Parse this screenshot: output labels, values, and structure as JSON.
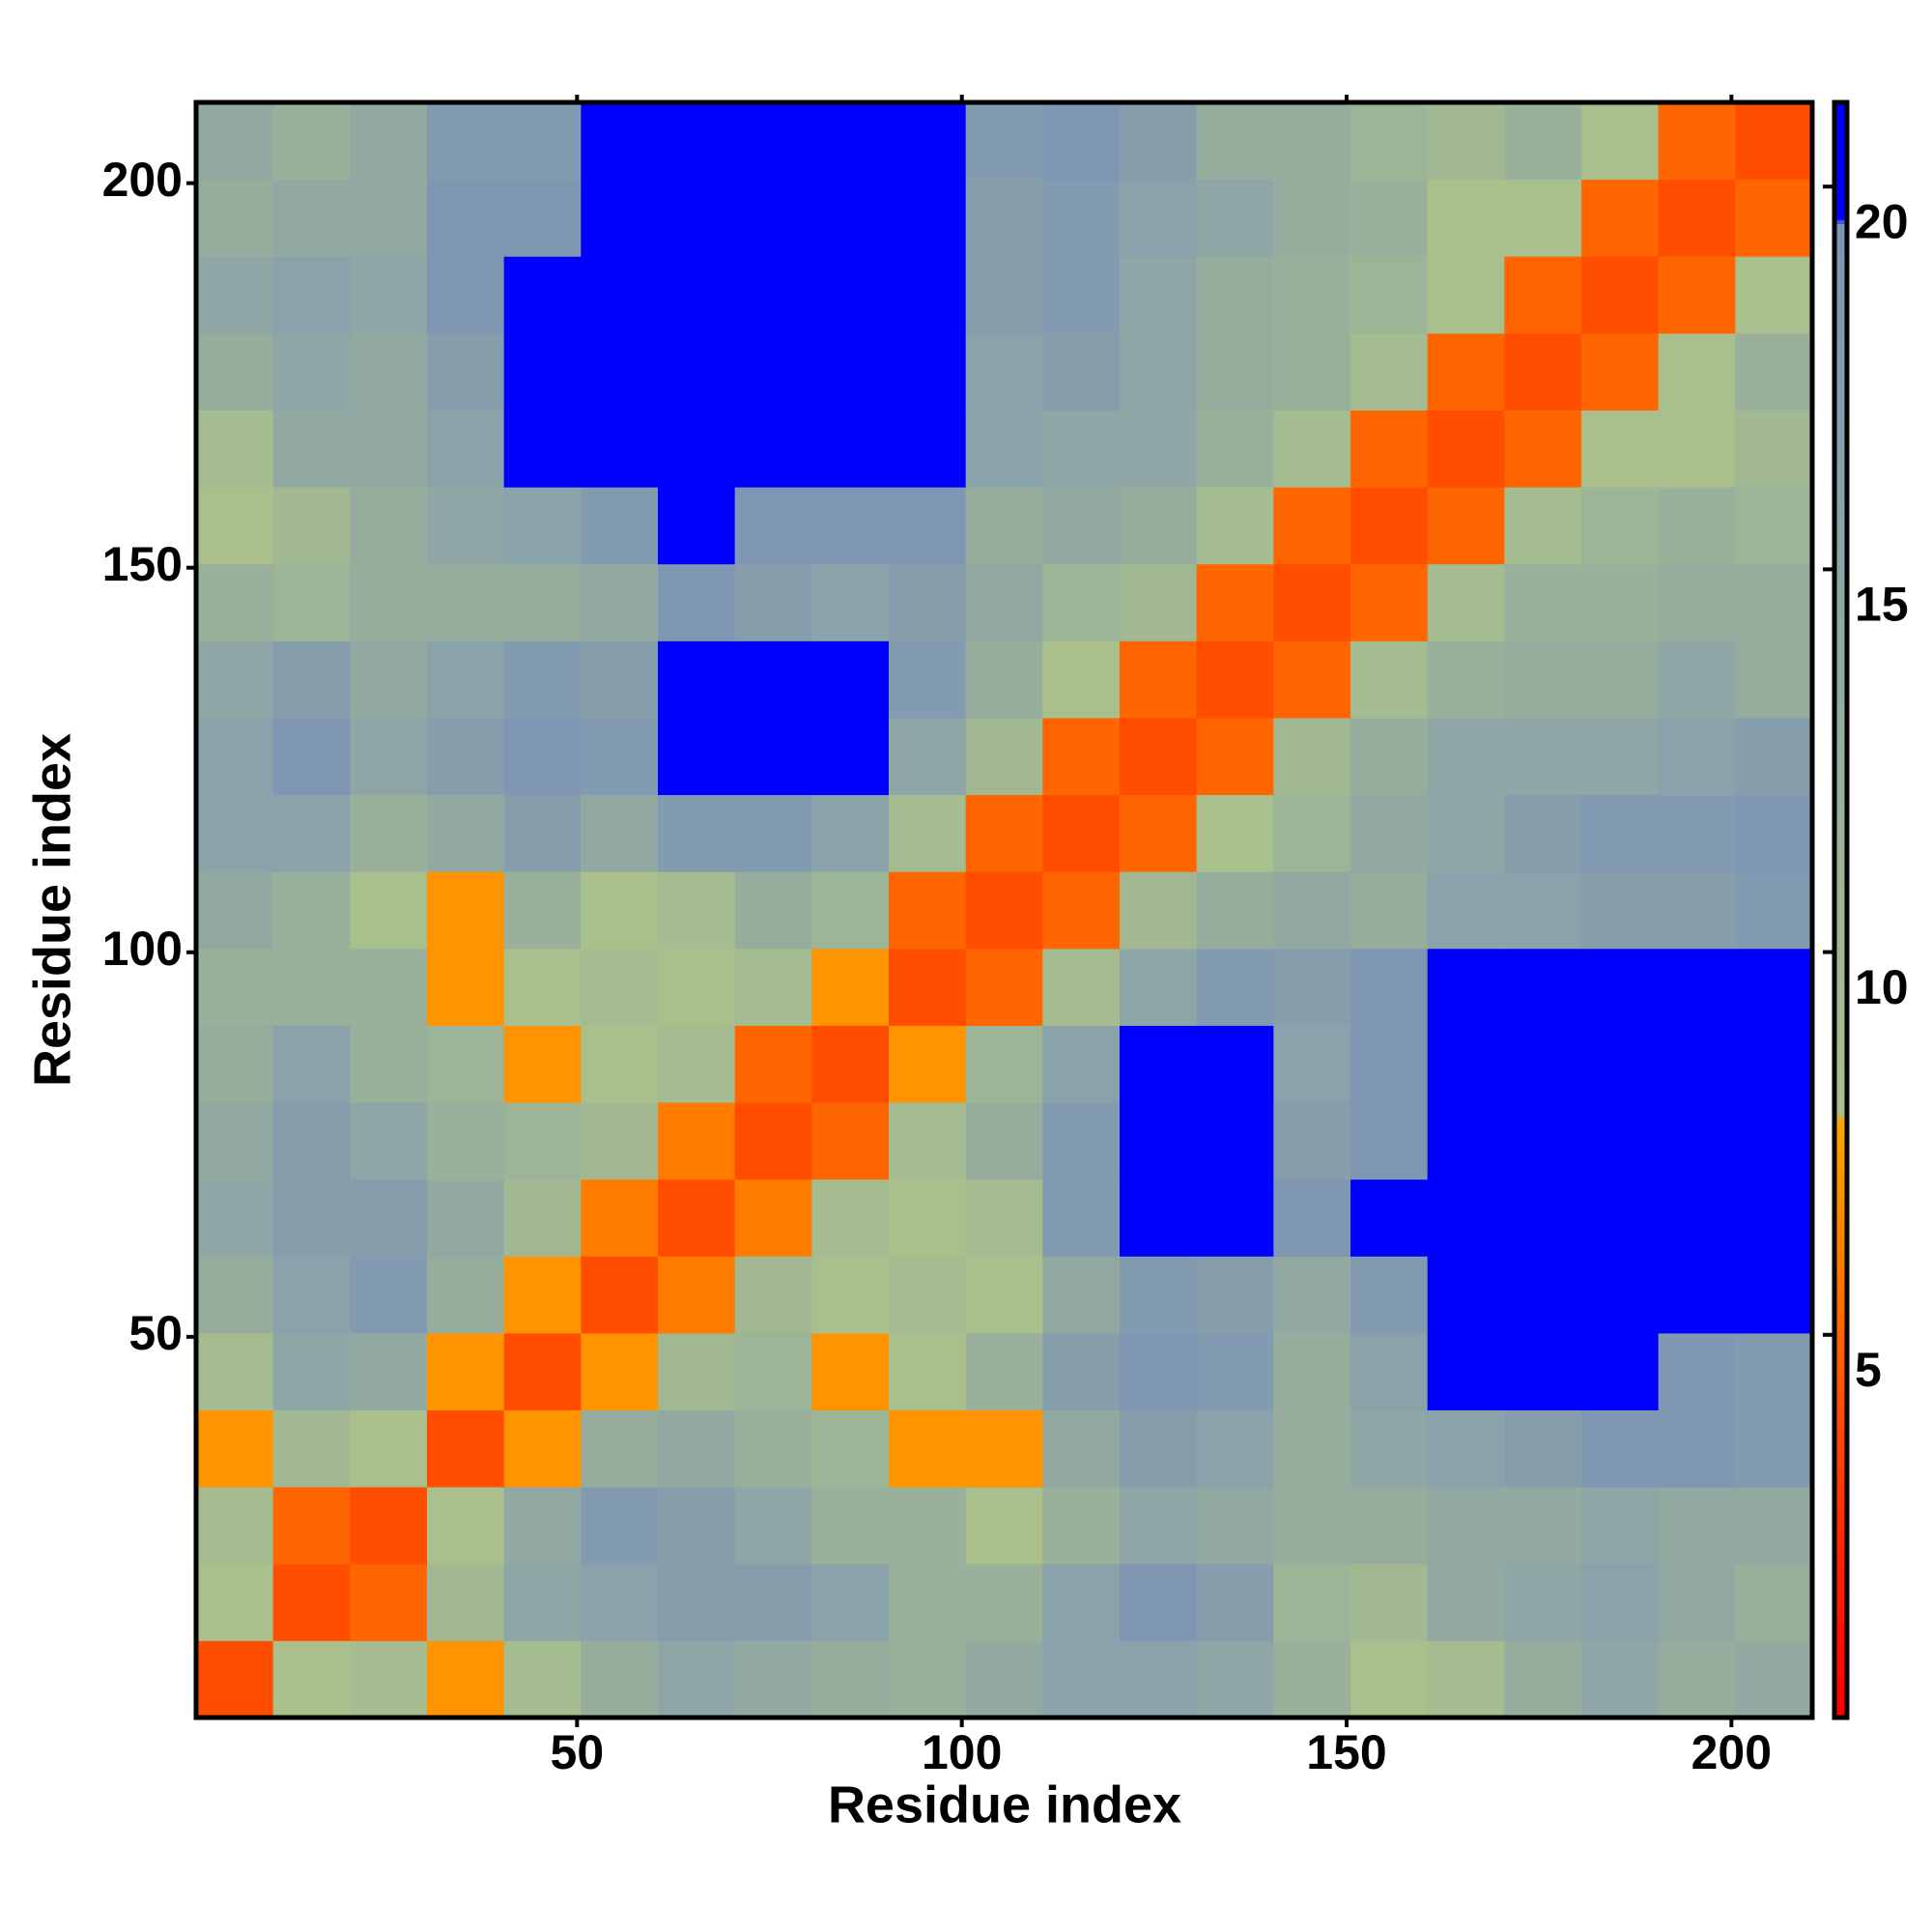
{
  "chart_data": {
    "type": "heatmap",
    "x_label": "Residue index",
    "y_label": "Residue index",
    "x_edges": [
      0.5,
      10.5,
      20.5,
      30.5,
      40.5,
      50.5,
      60.5,
      70.5,
      80.5,
      90.5,
      100.5,
      110.5,
      120.5,
      130.5,
      140.5,
      150.5,
      160.5,
      170.5,
      180.5,
      190.5,
      200.5,
      210.5
    ],
    "y_edges": [
      0.5,
      10.5,
      20.5,
      30.5,
      40.5,
      50.5,
      60.5,
      70.5,
      80.5,
      90.5,
      100.5,
      110.5,
      120.5,
      130.5,
      140.5,
      150.5,
      160.5,
      170.5,
      180.5,
      190.5,
      200.5,
      210.5
    ],
    "xlim": [
      0.5,
      210.5
    ],
    "ylim": [
      0.5,
      210.5
    ],
    "xticks": [
      50,
      100,
      150,
      200
    ],
    "yticks": [
      50,
      100,
      150,
      200
    ],
    "zlim": [
      0,
      21.1
    ],
    "zticks": [
      5,
      10,
      15,
      20
    ],
    "colorscale": [
      [
        0,
        "#ff0000"
      ],
      [
        2,
        "#ff2000"
      ],
      [
        7.8,
        "#ffa500"
      ],
      [
        7.9,
        "#a9c08c"
      ],
      [
        19.5,
        "#7d95b5"
      ],
      [
        19.6,
        "#0000ff"
      ],
      [
        21.1,
        "#0000ff"
      ]
    ],
    "z": [
      [
        4,
        8,
        9,
        7,
        9,
        13,
        15,
        14,
        13,
        12,
        14,
        16,
        16,
        15,
        12,
        8,
        9,
        13,
        15,
        13,
        14
      ],
      [
        8,
        4,
        5,
        10,
        15,
        16,
        17,
        17,
        16,
        12,
        12,
        16,
        19,
        17,
        11,
        10,
        14,
        15,
        16,
        14,
        12
      ],
      [
        9,
        5,
        4,
        8,
        14,
        18,
        17,
        15,
        12,
        12,
        8,
        12,
        15,
        14,
        13,
        13,
        14,
        14,
        15,
        14,
        14
      ],
      [
        7,
        10,
        8,
        4,
        7,
        13,
        14,
        12,
        11,
        7,
        7,
        14,
        17,
        16,
        13,
        15,
        16,
        17,
        19,
        19,
        18
      ],
      [
        9,
        15,
        14,
        7,
        4,
        7,
        10,
        11,
        7,
        8,
        12,
        17,
        19,
        18,
        13,
        16,
        20,
        21,
        20,
        19,
        18
      ],
      [
        13,
        16,
        18,
        13,
        7,
        4,
        6,
        10,
        8,
        9,
        8,
        14,
        18,
        17,
        14,
        18,
        21,
        21,
        21,
        20,
        21
      ],
      [
        15,
        17,
        17,
        14,
        10,
        6,
        4,
        6,
        9,
        8,
        9,
        18,
        20,
        20,
        19,
        20,
        21,
        21,
        21,
        21,
        21
      ],
      [
        14,
        17,
        15,
        12,
        11,
        10,
        6,
        4,
        5,
        9,
        13,
        18,
        20,
        20,
        17,
        19,
        21,
        21,
        21,
        21,
        21
      ],
      [
        13,
        16,
        12,
        11,
        7,
        8,
        9,
        5,
        4,
        7,
        11,
        16,
        20,
        20,
        16,
        19,
        21,
        21,
        21,
        21,
        21
      ],
      [
        12,
        12,
        12,
        7,
        8,
        9,
        8,
        9,
        7,
        4,
        5,
        9,
        15,
        18,
        17,
        19,
        21,
        21,
        21,
        21,
        21
      ],
      [
        14,
        12,
        8,
        7,
        12,
        8,
        9,
        13,
        11,
        5,
        4,
        5,
        10,
        13,
        14,
        13,
        16,
        16,
        17,
        17,
        18
      ],
      [
        16,
        16,
        12,
        14,
        17,
        14,
        18,
        18,
        16,
        9,
        5,
        4,
        5,
        8,
        11,
        14,
        15,
        17,
        18,
        18,
        19
      ],
      [
        16,
        19,
        15,
        17,
        19,
        18,
        20,
        20,
        20,
        15,
        10,
        5,
        4,
        5,
        10,
        13,
        15,
        15,
        15,
        16,
        17
      ],
      [
        15,
        17,
        14,
        16,
        18,
        17,
        20,
        20,
        20,
        18,
        13,
        8,
        5,
        4,
        5,
        9,
        12,
        13,
        13,
        15,
        13
      ],
      [
        12,
        11,
        13,
        13,
        13,
        14,
        19,
        17,
        16,
        17,
        14,
        11,
        10,
        5,
        4,
        5,
        9,
        12,
        12,
        13,
        13
      ],
      [
        8,
        10,
        13,
        15,
        16,
        18,
        20,
        19,
        19,
        19,
        13,
        14,
        13,
        9,
        5,
        4,
        5,
        9,
        11,
        12,
        11
      ],
      [
        9,
        14,
        14,
        16,
        20,
        21,
        21,
        21,
        21,
        21,
        16,
        15,
        15,
        12,
        9,
        5,
        4,
        5,
        8,
        8,
        10
      ],
      [
        13,
        15,
        14,
        17,
        21,
        21,
        21,
        21,
        21,
        21,
        16,
        17,
        15,
        13,
        12,
        9,
        5,
        4,
        5,
        8,
        12
      ],
      [
        15,
        16,
        15,
        19,
        20,
        21,
        21,
        21,
        21,
        21,
        17,
        18,
        15,
        13,
        12,
        11,
        8,
        5,
        4,
        5,
        8
      ],
      [
        13,
        14,
        14,
        19,
        19,
        20,
        21,
        21,
        21,
        21,
        17,
        18,
        16,
        15,
        13,
        12,
        8,
        8,
        5,
        4,
        5
      ],
      [
        14,
        12,
        14,
        18,
        18,
        21,
        21,
        21,
        21,
        21,
        18,
        19,
        17,
        13,
        13,
        11,
        10,
        12,
        8,
        5,
        4
      ]
    ]
  }
}
